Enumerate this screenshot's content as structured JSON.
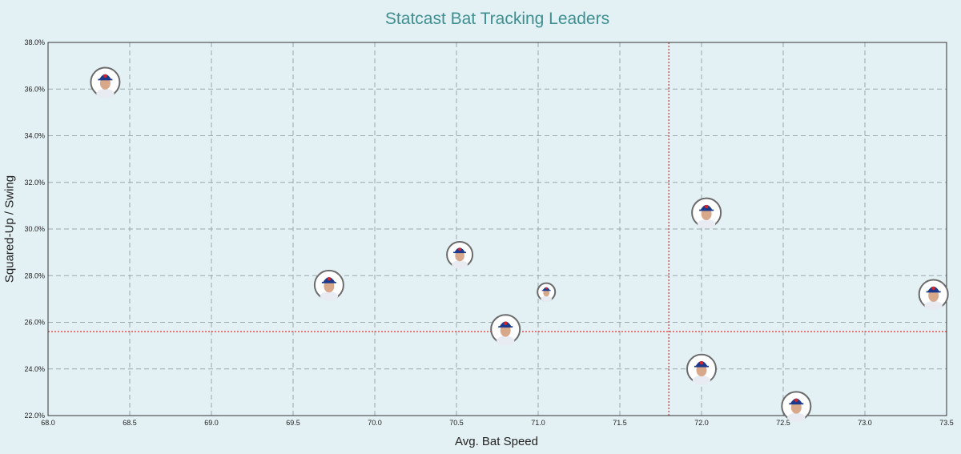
{
  "chart_data": {
    "type": "scatter",
    "title": "Statcast Bat Tracking Leaders",
    "xlabel": "Avg. Bat Speed",
    "ylabel": "Squared-Up / Swing",
    "xlim": [
      68.0,
      73.5
    ],
    "ylim": [
      22.0,
      38.0
    ],
    "x_ticks": [
      "68.0",
      "68.5",
      "69.0",
      "69.5",
      "70.0",
      "70.5",
      "71.0",
      "71.5",
      "72.0",
      "72.5",
      "73.0",
      "73.5"
    ],
    "y_ticks": [
      "22.0%",
      "24.0%",
      "26.0%",
      "28.0%",
      "30.0%",
      "32.0%",
      "34.0%",
      "36.0%",
      "38.0%"
    ],
    "grid": true,
    "reference_lines": {
      "x": 71.8,
      "y": 25.6
    },
    "points": [
      {
        "x": 68.35,
        "y": 36.3,
        "size": "large"
      },
      {
        "x": 69.72,
        "y": 27.6,
        "size": "large"
      },
      {
        "x": 70.52,
        "y": 28.9,
        "size": "medium"
      },
      {
        "x": 70.8,
        "y": 25.7,
        "size": "large"
      },
      {
        "x": 71.05,
        "y": 27.3,
        "size": "small"
      },
      {
        "x": 72.03,
        "y": 30.7,
        "size": "large"
      },
      {
        "x": 72.0,
        "y": 24.0,
        "size": "large"
      },
      {
        "x": 72.58,
        "y": 22.4,
        "size": "large"
      },
      {
        "x": 73.42,
        "y": 27.2,
        "size": "large"
      }
    ],
    "colors": {
      "background": "#e3f0f4",
      "grid": "#9aa9ae",
      "reference": "#e8413a",
      "title": "#3e8f8f",
      "marker_ring": "#6b6b6b",
      "cap": "#1d3a8c",
      "skin": "#d8a88a",
      "jersey": "#e8ecf2"
    }
  }
}
